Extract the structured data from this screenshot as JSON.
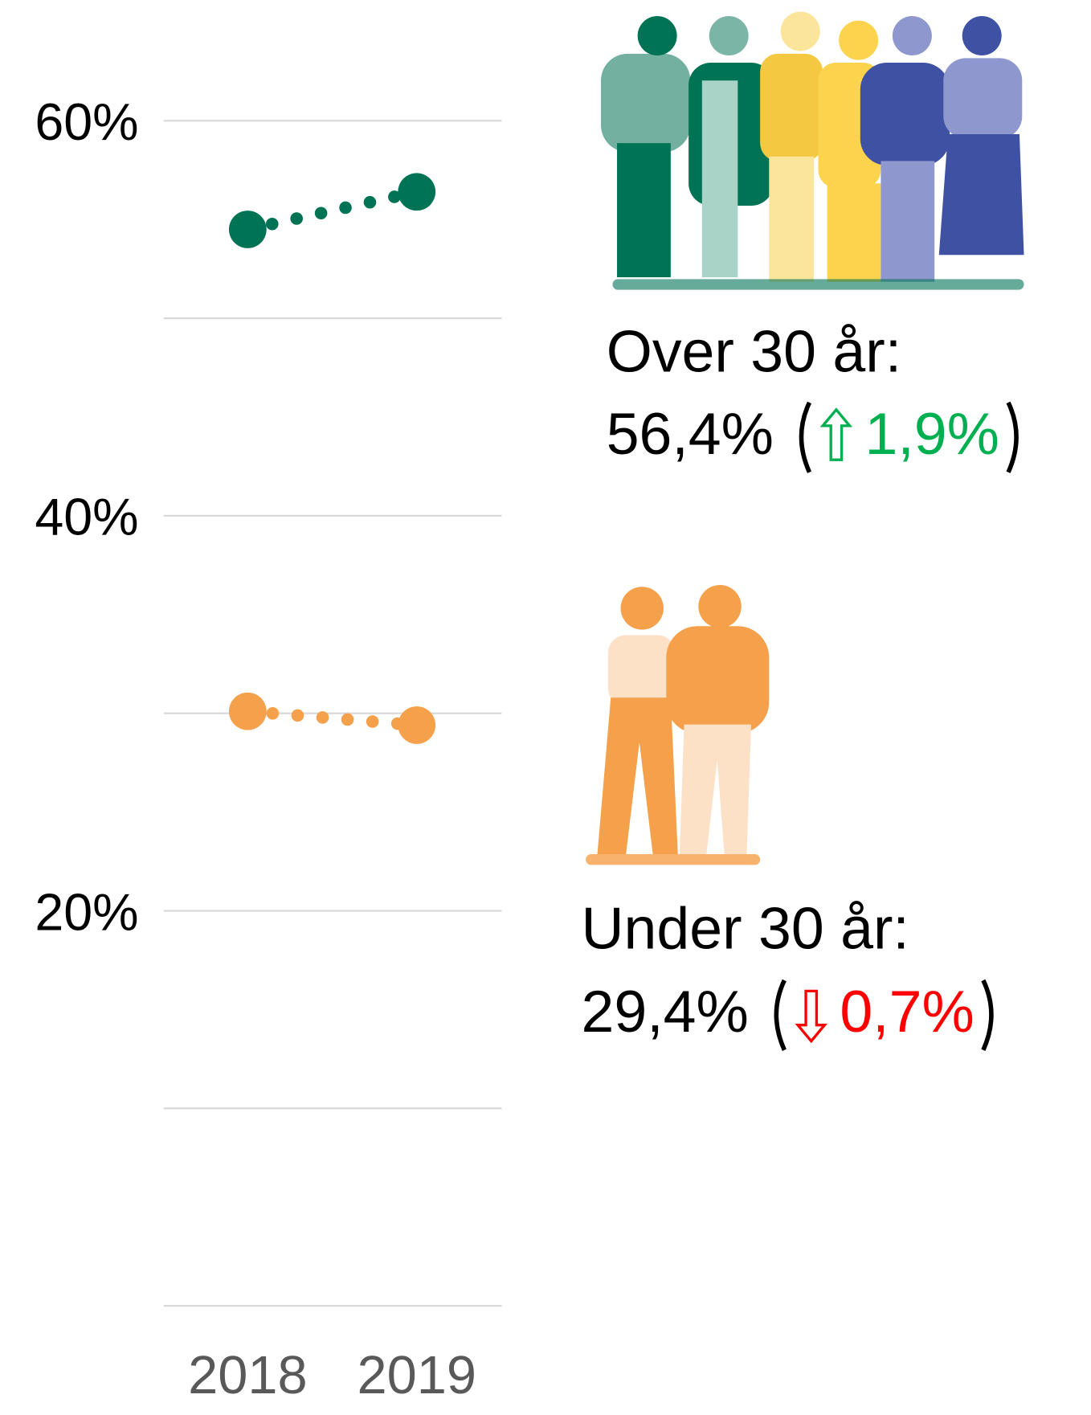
{
  "chart_data": {
    "type": "dot-change",
    "categories": [
      "2018",
      "2019"
    ],
    "series": [
      {
        "name": "Over 30 år",
        "color": "#007355",
        "values": [
          54.5,
          56.4
        ]
      },
      {
        "name": "Under 30 år",
        "color": "#f5a04a",
        "values": [
          30.1,
          29.4
        ]
      }
    ],
    "ylim": [
      0,
      60
    ],
    "yticks": [
      {
        "value": 0,
        "label": null
      },
      {
        "value": 10,
        "label": null
      },
      {
        "value": 20,
        "label": "20%"
      },
      {
        "value": 30,
        "label": null
      },
      {
        "value": 40,
        "label": "40%"
      },
      {
        "value": 50,
        "label": null
      },
      {
        "value": 60,
        "label": "60%"
      }
    ],
    "grid": true,
    "annotations": [
      {
        "title": "Over 30 år:",
        "value": "56,4%",
        "change": "1,9%",
        "direction": "up",
        "color": "#00b050"
      },
      {
        "title": "Under 30 år:",
        "value": "29,4%",
        "change": "0,7%",
        "direction": "down",
        "color": "#ff0000"
      }
    ]
  }
}
